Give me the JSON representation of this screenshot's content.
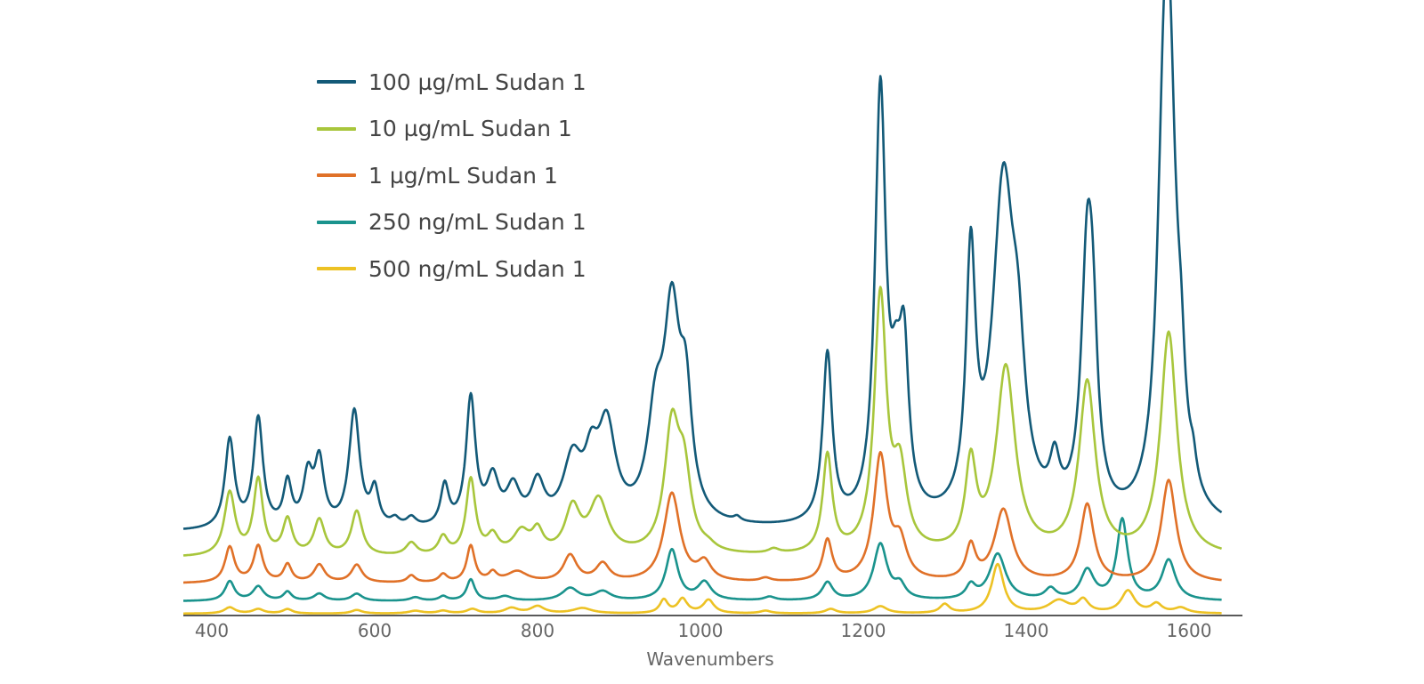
{
  "chart_data": {
    "type": "line",
    "title": "",
    "xlabel": "Wavenumbers",
    "ylabel": "",
    "xlim": [
      400,
      1640
    ],
    "x_ticks": [
      "400",
      "600",
      "800",
      "1000",
      "1200",
      "1400",
      "1600"
    ],
    "y_ticks_shown": false,
    "grid": false,
    "legend_position": "top-left",
    "note": "spectra are vertically offset; peak list = [wavenumber, relative height, width]",
    "series": [
      {
        "name": "100 µg/mL Sudan 1",
        "color": "#135a78",
        "baseline": 598,
        "peaks": [
          [
            422,
            100,
            7
          ],
          [
            457,
            123,
            7
          ],
          [
            493,
            49,
            6
          ],
          [
            518,
            55,
            7
          ],
          [
            532,
            72,
            7
          ],
          [
            575,
            131,
            8
          ],
          [
            600,
            40,
            6
          ],
          [
            625,
            8,
            6
          ],
          [
            645,
            10,
            7
          ],
          [
            686,
            45,
            6
          ],
          [
            718,
            143,
            7
          ],
          [
            745,
            50,
            9
          ],
          [
            770,
            40,
            10
          ],
          [
            800,
            45,
            10
          ],
          [
            843,
            70,
            14
          ],
          [
            866,
            55,
            10
          ],
          [
            885,
            105,
            13
          ],
          [
            945,
            105,
            12
          ],
          [
            965,
            220,
            12
          ],
          [
            982,
            120,
            9
          ],
          [
            1045,
            5,
            5
          ],
          [
            1156,
            190,
            7
          ],
          [
            1221,
            478,
            8
          ],
          [
            1240,
            100,
            8
          ],
          [
            1250,
            165,
            7
          ],
          [
            1332,
            280,
            7
          ],
          [
            1372,
            370,
            16
          ],
          [
            1390,
            120,
            10
          ],
          [
            1435,
            50,
            7
          ],
          [
            1475,
            280,
            9
          ],
          [
            1482,
            130,
            7
          ],
          [
            1568,
            200,
            9
          ],
          [
            1575,
            500,
            11
          ],
          [
            1590,
            80,
            6
          ],
          [
            1605,
            25,
            5
          ]
        ]
      },
      {
        "name": "10 µg/mL Sudan 1",
        "color": "#a8c63c",
        "baseline": 627,
        "peaks": [
          [
            422,
            71,
            8
          ],
          [
            457,
            85,
            7
          ],
          [
            493,
            40,
            7
          ],
          [
            532,
            40,
            8
          ],
          [
            578,
            50,
            8
          ],
          [
            645,
            14,
            8
          ],
          [
            684,
            20,
            7
          ],
          [
            718,
            85,
            7
          ],
          [
            745,
            20,
            8
          ],
          [
            780,
            25,
            12
          ],
          [
            800,
            24,
            8
          ],
          [
            843,
            50,
            11
          ],
          [
            875,
            60,
            14
          ],
          [
            965,
            138,
            11
          ],
          [
            980,
            80,
            10
          ],
          [
            1010,
            5,
            10
          ],
          [
            1090,
            5,
            8
          ],
          [
            1156,
            110,
            7
          ],
          [
            1221,
            287,
            9
          ],
          [
            1245,
            85,
            10
          ],
          [
            1332,
            97,
            8
          ],
          [
            1375,
            209,
            14
          ],
          [
            1475,
            192,
            12
          ],
          [
            1575,
            250,
            12
          ]
        ]
      },
      {
        "name": "1 µg/mL Sudan 1",
        "color": "#e07128",
        "baseline": 656,
        "peaks": [
          [
            422,
            40,
            7
          ],
          [
            457,
            41,
            7
          ],
          [
            493,
            20,
            6
          ],
          [
            532,
            20,
            8
          ],
          [
            578,
            20,
            8
          ],
          [
            645,
            8,
            6
          ],
          [
            684,
            9,
            6
          ],
          [
            718,
            41,
            6
          ],
          [
            745,
            10,
            6
          ],
          [
            775,
            12,
            15
          ],
          [
            840,
            30,
            10
          ],
          [
            880,
            20,
            10
          ],
          [
            965,
            100,
            12
          ],
          [
            1005,
            20,
            10
          ],
          [
            1080,
            4,
            8
          ],
          [
            1156,
            46,
            7
          ],
          [
            1221,
            140,
            10
          ],
          [
            1245,
            40,
            10
          ],
          [
            1332,
            38,
            7
          ],
          [
            1372,
            81,
            13
          ],
          [
            1475,
            87,
            10
          ],
          [
            1575,
            115,
            11
          ]
        ]
      },
      {
        "name": "250 ng/mL Sudan 1",
        "color": "#1a938d",
        "baseline": 676,
        "peaks": [
          [
            422,
            22,
            7
          ],
          [
            457,
            16,
            8
          ],
          [
            493,
            10,
            6
          ],
          [
            532,
            8,
            8
          ],
          [
            578,
            8,
            8
          ],
          [
            650,
            4,
            8
          ],
          [
            684,
            5,
            6
          ],
          [
            718,
            24,
            6
          ],
          [
            760,
            5,
            10
          ],
          [
            840,
            14,
            12
          ],
          [
            880,
            10,
            12
          ],
          [
            965,
            57,
            9
          ],
          [
            1005,
            20,
            10
          ],
          [
            1085,
            4,
            8
          ],
          [
            1156,
            20,
            8
          ],
          [
            1221,
            63,
            10
          ],
          [
            1245,
            15,
            8
          ],
          [
            1332,
            15,
            7
          ],
          [
            1365,
            52,
            12
          ],
          [
            1430,
            12,
            8
          ],
          [
            1475,
            33,
            10
          ],
          [
            1518,
            90,
            8
          ],
          [
            1575,
            45,
            10
          ]
        ]
      },
      {
        "name": "500 ng/mL Sudan 1",
        "color": "#edc224",
        "baseline": 690,
        "peaks": [
          [
            422,
            7,
            8
          ],
          [
            457,
            5,
            8
          ],
          [
            493,
            5,
            7
          ],
          [
            578,
            4,
            8
          ],
          [
            650,
            3,
            10
          ],
          [
            684,
            3,
            8
          ],
          [
            720,
            5,
            8
          ],
          [
            768,
            6,
            10
          ],
          [
            800,
            8,
            10
          ],
          [
            855,
            6,
            14
          ],
          [
            955,
            15,
            6
          ],
          [
            978,
            16,
            7
          ],
          [
            1010,
            15,
            8
          ],
          [
            1080,
            3,
            8
          ],
          [
            1160,
            5,
            8
          ],
          [
            1221,
            8,
            10
          ],
          [
            1300,
            10,
            7
          ],
          [
            1365,
            55,
            9
          ],
          [
            1440,
            14,
            15
          ],
          [
            1470,
            14,
            8
          ],
          [
            1525,
            25,
            10
          ],
          [
            1560,
            10,
            8
          ],
          [
            1590,
            6,
            10
          ]
        ]
      }
    ]
  }
}
